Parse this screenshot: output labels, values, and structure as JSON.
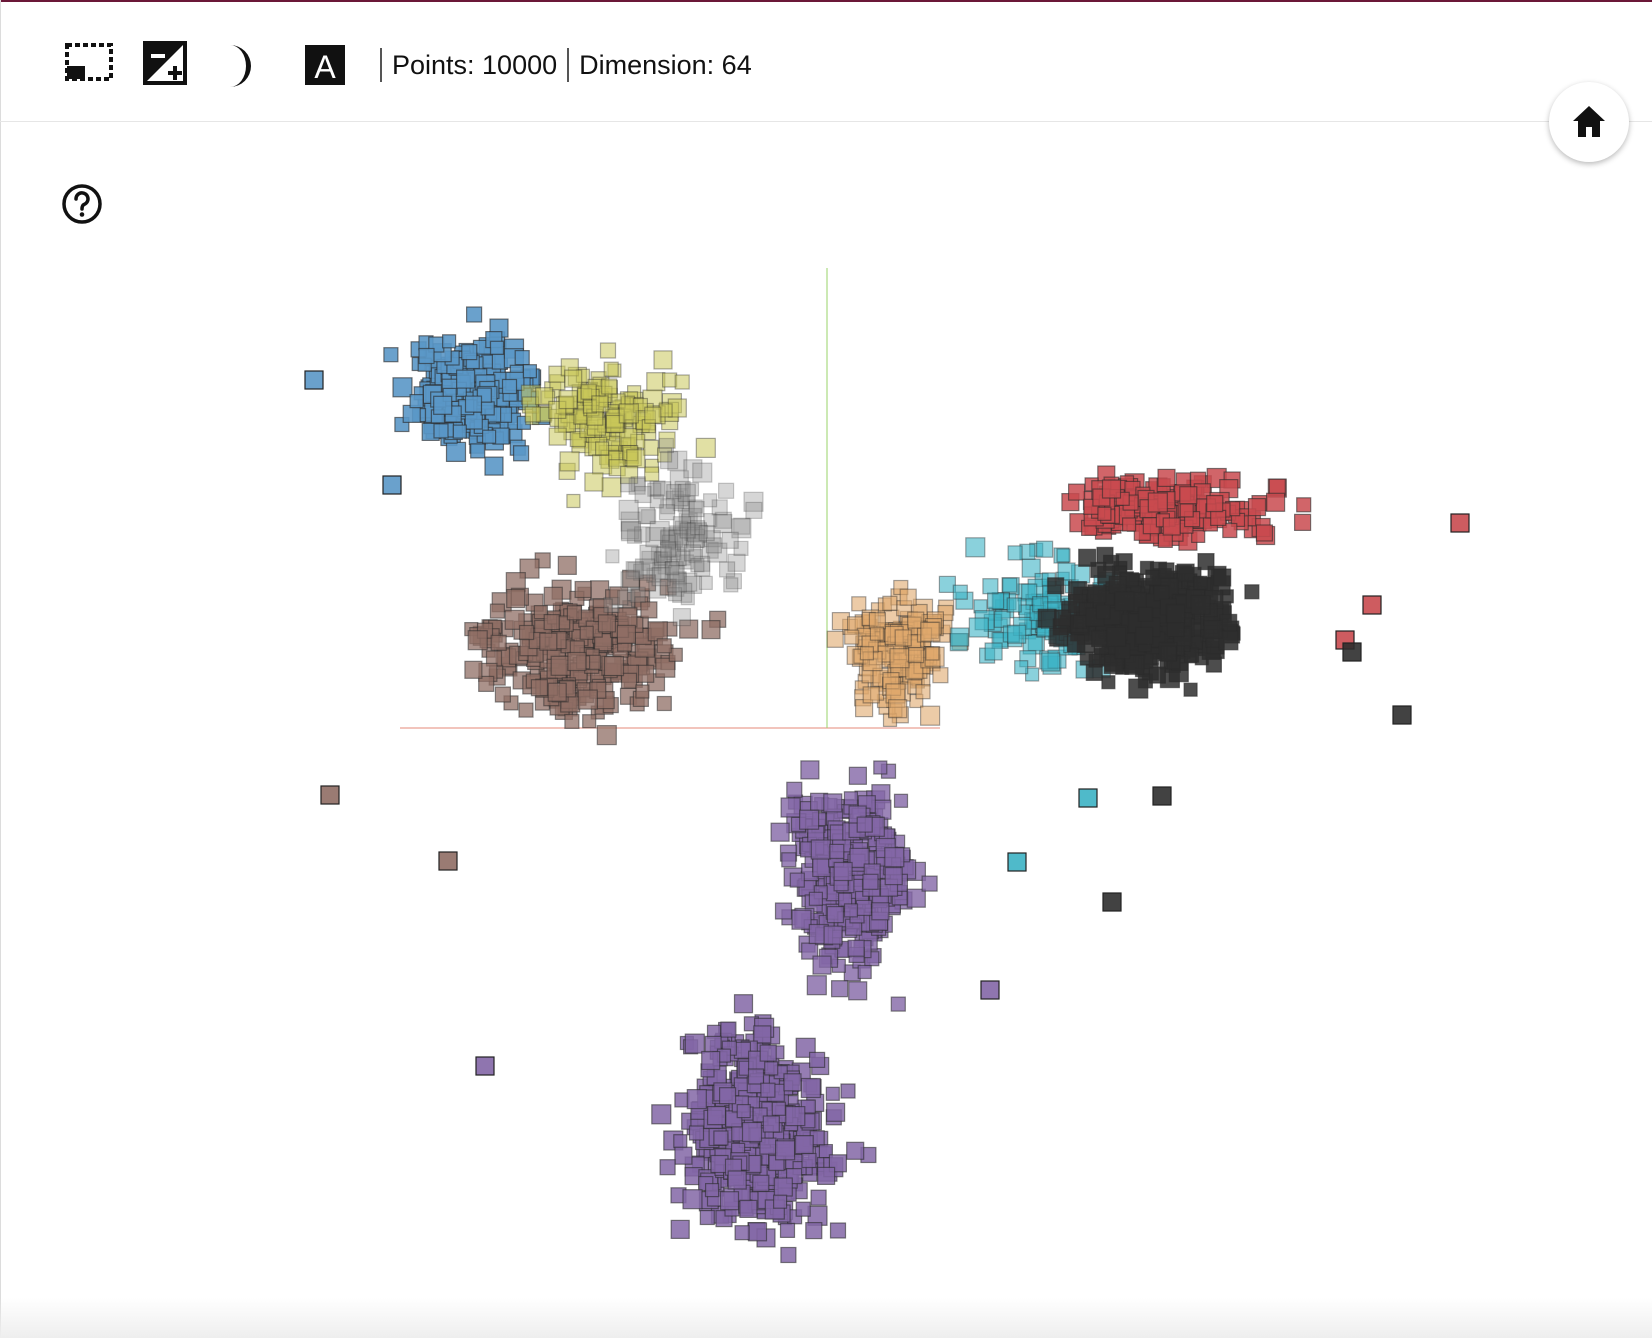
{
  "toolbar": {
    "icons": [
      "selection-box-icon",
      "contrast-plus-icon",
      "moon-icon",
      "label-a-icon"
    ],
    "label_icon_text": "A",
    "points_label": "Points: 10000",
    "dimension_label": "Dimension: 64"
  },
  "home_icon": "home-icon",
  "help_icon": "help-circle-icon",
  "colors": {
    "blue": "#5a97c6",
    "yellow": "#c9c65a",
    "brown": "#8f6d64",
    "grey": "#8a8a8a",
    "peach": "#e0a86c",
    "cyan": "#3cb3c4",
    "red": "#c94a4f",
    "dark": "#2e2e2e",
    "purple": "#8366a6",
    "x_axis": "#e58a7a",
    "y_axis": "#9ad36a"
  }
}
